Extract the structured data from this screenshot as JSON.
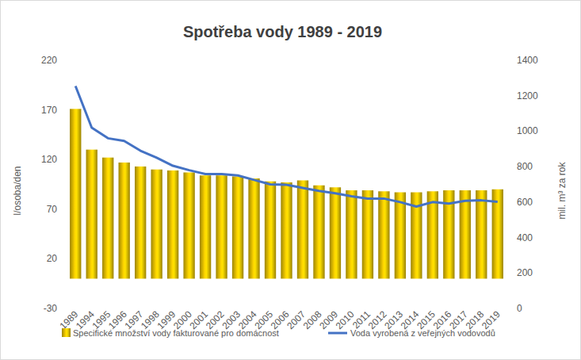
{
  "chart_data": {
    "type": "bar",
    "title": "Spotřeba vody 1989 - 2019",
    "y_label": "l/osoba/den",
    "y2_label": "mil. m³ za rok",
    "categories": [
      "1989",
      "1994",
      "1995",
      "1996",
      "1997",
      "1998",
      "1999",
      "2000",
      "2001",
      "2002",
      "2003",
      "2004",
      "2005",
      "2006",
      "2007",
      "2008",
      "2009",
      "2010",
      "2011",
      "2012",
      "2013",
      "2014",
      "2015",
      "2016",
      "2017",
      "2018",
      "2019"
    ],
    "series": [
      {
        "name": "Specifické množství vody fakturované pro domácnost",
        "type": "bar",
        "color": "#ffd700",
        "values": [
          171,
          130,
          122,
          117,
          113,
          110,
          109,
          107,
          104,
          104,
          103,
          101,
          98,
          97,
          99,
          94,
          92,
          89,
          89,
          88,
          87,
          87,
          88,
          89,
          89,
          89,
          90
        ]
      },
      {
        "name": "Voda vyrobená z veřejných vodovodů",
        "type": "line",
        "color": "#4472c4",
        "axis": "y2",
        "values": [
          1255,
          1020,
          960,
          945,
          890,
          850,
          805,
          780,
          758,
          758,
          750,
          725,
          700,
          698,
          680,
          663,
          650,
          633,
          620,
          620,
          600,
          575,
          600,
          592,
          607,
          610,
          602
        ]
      }
    ],
    "ylim": [
      -30,
      220
    ],
    "yticks": [
      -30,
      20,
      70,
      120,
      170,
      220
    ],
    "y2lim": [
      0,
      1400
    ],
    "y2ticks": [
      0,
      200,
      400,
      600,
      800,
      1000,
      1200,
      1400
    ],
    "grid": false,
    "legend": "bottom"
  }
}
